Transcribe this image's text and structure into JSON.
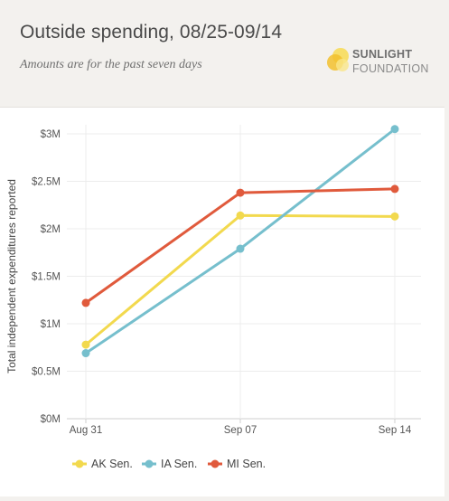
{
  "header": {
    "title": "Outside spending, 08/25-09/14",
    "subtitle": "Amounts are for the past seven days",
    "logo_line1": "SUNLIGHT",
    "logo_line2": "FOUNDATION"
  },
  "chart_data": {
    "type": "line",
    "title": "Outside spending, 08/25-09/14",
    "subtitle": "Amounts are for the past seven days",
    "xlabel": "",
    "ylabel": "Total independent expenditures reported",
    "categories": [
      "Aug 31",
      "Sep 07",
      "Sep 14"
    ],
    "ylim": [
      0,
      3000000
    ],
    "yticks": [
      {
        "value": 0,
        "label": "$0M"
      },
      {
        "value": 500000,
        "label": "$0.5M"
      },
      {
        "value": 1000000,
        "label": "$1M"
      },
      {
        "value": 1500000,
        "label": "$1.5M"
      },
      {
        "value": 2000000,
        "label": "$2M"
      },
      {
        "value": 2500000,
        "label": "$2.5M"
      },
      {
        "value": 3000000,
        "label": "$3M"
      }
    ],
    "grid": true,
    "legend_position": "bottom-left",
    "series": [
      {
        "name": "AK Sen.",
        "color": "#f2d94e",
        "values": [
          780000,
          2140000,
          2130000
        ]
      },
      {
        "name": "IA Sen.",
        "color": "#76bfcd",
        "values": [
          690000,
          1790000,
          3050000
        ]
      },
      {
        "name": "MI Sen.",
        "color": "#e05a3c",
        "values": [
          1220000,
          2380000,
          2420000
        ]
      }
    ]
  }
}
